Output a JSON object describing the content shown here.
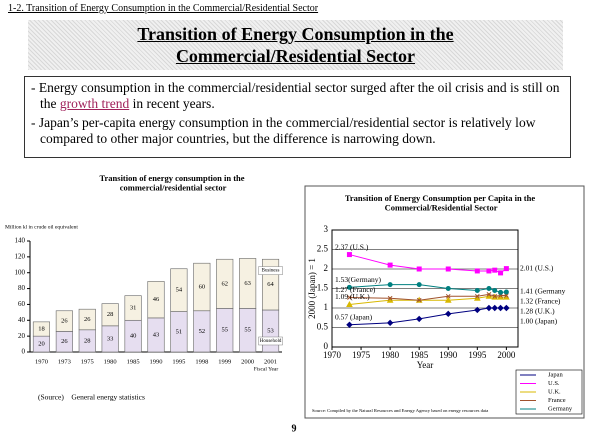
{
  "section": "1-2. Transition of Energy Consumption in the Commercial/Residential Sector",
  "title": "Transition of Energy Consumption in the Commercial/Residential Sector",
  "bullets": [
    {
      "before": "- Energy consumption in the commercial/residential sector surged after the oil crisis and is still on the ",
      "highlight": "growth trend",
      "after": " in recent years."
    },
    {
      "before": "- Japan’s per-capita energy consumption in the commercial/residential sector is relatively low compared to other major countries, but the difference is narrowing down."
    }
  ],
  "page_number": "9",
  "chart_data": [
    {
      "type": "bar",
      "stacked": true,
      "title": "Transition of energy consumption in the commercial/residential sector",
      "y_label": "Million kl in crude oil equivalent",
      "x_label": "Fiscal Year",
      "source": "(Source)　General energy statistics",
      "categories": [
        "1970",
        "1973",
        "1975",
        "1980",
        "1985",
        "1990",
        "1995",
        "1998",
        "1999",
        "2000",
        "2001"
      ],
      "series": [
        {
          "name": "Household",
          "color": "#e6def0",
          "values": [
            20,
            26,
            28,
            33,
            40,
            43,
            51,
            52,
            55,
            55,
            53
          ]
        },
        {
          "name": "Business",
          "color": "#f6f1e2",
          "values": [
            18,
            26,
            26,
            28,
            31,
            46,
            54,
            60,
            62,
            63,
            64
          ]
        }
      ],
      "ylim": [
        0,
        140
      ],
      "yticks": [
        0,
        20,
        40,
        60,
        80,
        100,
        120,
        140
      ],
      "grid": false
    },
    {
      "type": "line",
      "title": "Transition of Energy Consumption per Capita in the Commercial/Residential Sector",
      "y_label": "2000 (Japan) = 1",
      "x_label": "Year",
      "source": "Source: Compiled by the Natural Resources and Energy Agency based on energy resources data",
      "x": [
        1973,
        1980,
        1985,
        1990,
        1995,
        1997,
        1998,
        1999,
        2000
      ],
      "series": [
        {
          "name": "Japan",
          "color": "#000080",
          "marker": "diamond",
          "values": [
            0.57,
            0.62,
            0.72,
            0.85,
            0.95,
            1.0,
            1.0,
            1.0,
            1.0
          ],
          "start_label": "0.57 (Japan)",
          "end_label": "1.00 (Japan)"
        },
        {
          "name": "U.S.",
          "color": "#ff00ff",
          "marker": "square",
          "values": [
            2.37,
            2.1,
            2.0,
            2.0,
            1.95,
            1.95,
            1.97,
            1.9,
            2.01
          ],
          "start_label": "2.37 (U.S.)",
          "end_label": "2.01 (U.S.)"
        },
        {
          "name": "U.K.",
          "color": "#d8b800",
          "marker": "triangle",
          "values": [
            1.09,
            1.2,
            1.2,
            1.2,
            1.25,
            1.3,
            1.28,
            1.28,
            1.28
          ],
          "start_label": "1.09 (U.K.)",
          "end_label": "1.28 (U.K.)"
        },
        {
          "name": "France",
          "color": "#a0522d",
          "marker": "cross",
          "values": [
            1.27,
            1.25,
            1.2,
            1.3,
            1.3,
            1.35,
            1.3,
            1.32,
            1.32
          ],
          "start_label": "1.27 (France)",
          "end_label": "1.32 (France)"
        },
        {
          "name": "Germany",
          "color": "#008080",
          "marker": "circle",
          "values": [
            1.53,
            1.6,
            1.6,
            1.5,
            1.45,
            1.5,
            1.45,
            1.4,
            1.41
          ],
          "start_label": "1.53(Germany)",
          "end_label": "1.41 (Germany"
        }
      ],
      "xlim": [
        1970,
        2002
      ],
      "xticks": [
        1970,
        1975,
        1980,
        1985,
        1990,
        1995,
        2000
      ],
      "ylim": [
        0,
        3
      ],
      "yticks": [
        0,
        0.5,
        1,
        1.5,
        2,
        2.5,
        3
      ],
      "grid": true,
      "legend": "bottom-right"
    }
  ]
}
